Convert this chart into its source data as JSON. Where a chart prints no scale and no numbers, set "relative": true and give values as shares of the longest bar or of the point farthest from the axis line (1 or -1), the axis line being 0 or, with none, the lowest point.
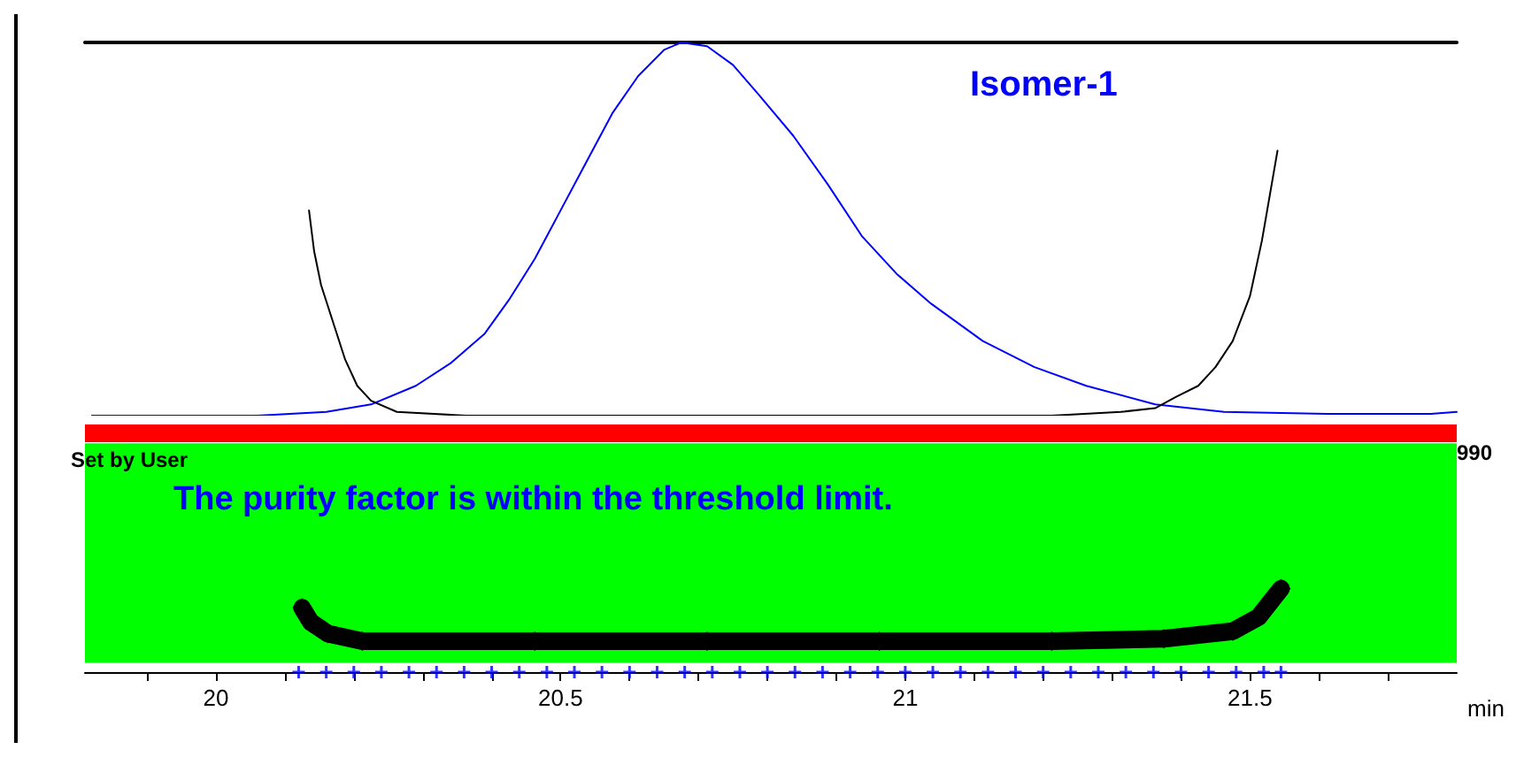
{
  "chart_data": [
    {
      "type": "line",
      "relative": true,
      "xlim": [
        19.81,
        21.8
      ],
      "tick_labels": false,
      "marker": "none",
      "annotations": [
        "Isomer-1"
      ],
      "series": [
        {
          "color": "#0000ff",
          "x": [
            19.82,
            20.06,
            20.16,
            20.225,
            20.29,
            20.34,
            20.39,
            20.425,
            20.4625,
            20.5,
            20.5375,
            20.575,
            20.6125,
            20.65,
            20.675,
            20.7125,
            20.75,
            20.7875,
            20.8375,
            20.8875,
            20.9375,
            20.9875,
            21.0375,
            21.1125,
            21.1875,
            21.2625,
            21.3625,
            21.4625,
            21.6125,
            21.7625,
            21.8
          ],
          "values": [
            0,
            0,
            0.01,
            0.03,
            0.08,
            0.14,
            0.22,
            0.31,
            0.42,
            0.55,
            0.68,
            0.81,
            0.91,
            0.98,
            1,
            0.99,
            0.94,
            0.86,
            0.75,
            0.62,
            0.48,
            0.38,
            0.3,
            0.2,
            0.13,
            0.08,
            0.03,
            0.01,
            0.005,
            0.005,
            0.01
          ]
        },
        {
          "color": "#000000",
          "x": [
            20.135,
            20.1425,
            20.1525,
            20.17,
            20.1875,
            20.205,
            20.225,
            20.2625,
            20.3625,
            21.2125,
            21.3125,
            21.3625,
            21.3925,
            21.425,
            21.45,
            21.475,
            21.5,
            21.5175,
            21.54
          ],
          "values": [
            0.55,
            0.44,
            0.35,
            0.25,
            0.15,
            0.08,
            0.04,
            0.01,
            0,
            0,
            0.01,
            0.02,
            0.05,
            0.08,
            0.13,
            0.2,
            0.32,
            0.47,
            0.71
          ]
        }
      ]
    },
    {
      "type": "line",
      "relative": true,
      "xlim": [
        19.81,
        21.8
      ],
      "xlabel": "min",
      "tick_labels": "x",
      "xticks": [
        {
          "value": 19.9,
          "label": null
        },
        20,
        {
          "value": 20.1,
          "label": null
        },
        {
          "value": 20.2,
          "label": null
        },
        {
          "value": 20.3,
          "label": null
        },
        {
          "value": 20.4,
          "label": null
        },
        20.5,
        {
          "value": 20.6,
          "label": null
        },
        {
          "value": 20.7,
          "label": null
        },
        {
          "value": 20.8,
          "label": null
        },
        {
          "value": 20.9,
          "label": null
        },
        21,
        {
          "value": 21.1,
          "label": null
        },
        {
          "value": 21.2,
          "label": null
        },
        {
          "value": 21.3,
          "label": null
        },
        {
          "value": 21.4,
          "label": null
        },
        21.5,
        {
          "value": 21.6,
          "label": null
        },
        {
          "value": 21.7,
          "label": null
        }
      ],
      "ref_lines": [
        {
          "axis": "y",
          "value": 2.86,
          "label": "Set by User",
          "color": "#ff0000"
        }
      ],
      "bands": [
        {
          "axis": "y",
          "from": 0.11,
          "to": 2.74,
          "color": "#00ff00"
        }
      ],
      "annotations": [
        "The purity factor is within the threshold limit.",
        "990"
      ],
      "series": [
        {
          "color": "#000000",
          "marker": "diamond",
          "x": [
            20.125,
            20.1375,
            20.1625,
            20.2125,
            20.4625,
            20.7125,
            20.9625,
            21.2125,
            21.375,
            21.475,
            21.5125,
            21.545
          ],
          "values": [
            0.77,
            0.6,
            0.46,
            0.37,
            0.37,
            0.37,
            0.37,
            0.37,
            0.4,
            0.49,
            0.66,
            1
          ]
        },
        {
          "type": "scatter",
          "color": "#0000ff",
          "marker": "cross",
          "x": [
            20.12,
            20.16,
            20.2,
            20.24,
            20.28,
            20.32,
            20.36,
            20.4,
            20.44,
            20.48,
            20.52,
            20.56,
            20.6,
            20.64,
            20.68,
            20.72,
            20.76,
            20.8,
            20.84,
            20.88,
            20.92,
            20.96,
            21,
            21.04,
            21.08,
            21.12,
            21.16,
            21.2,
            21.24,
            21.28,
            21.32,
            21.36,
            21.4,
            21.44,
            21.48,
            21.52,
            21.545
          ],
          "values": [
            0,
            0,
            0,
            0,
            0,
            0,
            0,
            0,
            0,
            0,
            0,
            0,
            0,
            0,
            0,
            0,
            0,
            0,
            0,
            0,
            0,
            0,
            0,
            0,
            0,
            0,
            0,
            0,
            0,
            0,
            0,
            0,
            0,
            0,
            0,
            0,
            0
          ]
        }
      ]
    }
  ]
}
